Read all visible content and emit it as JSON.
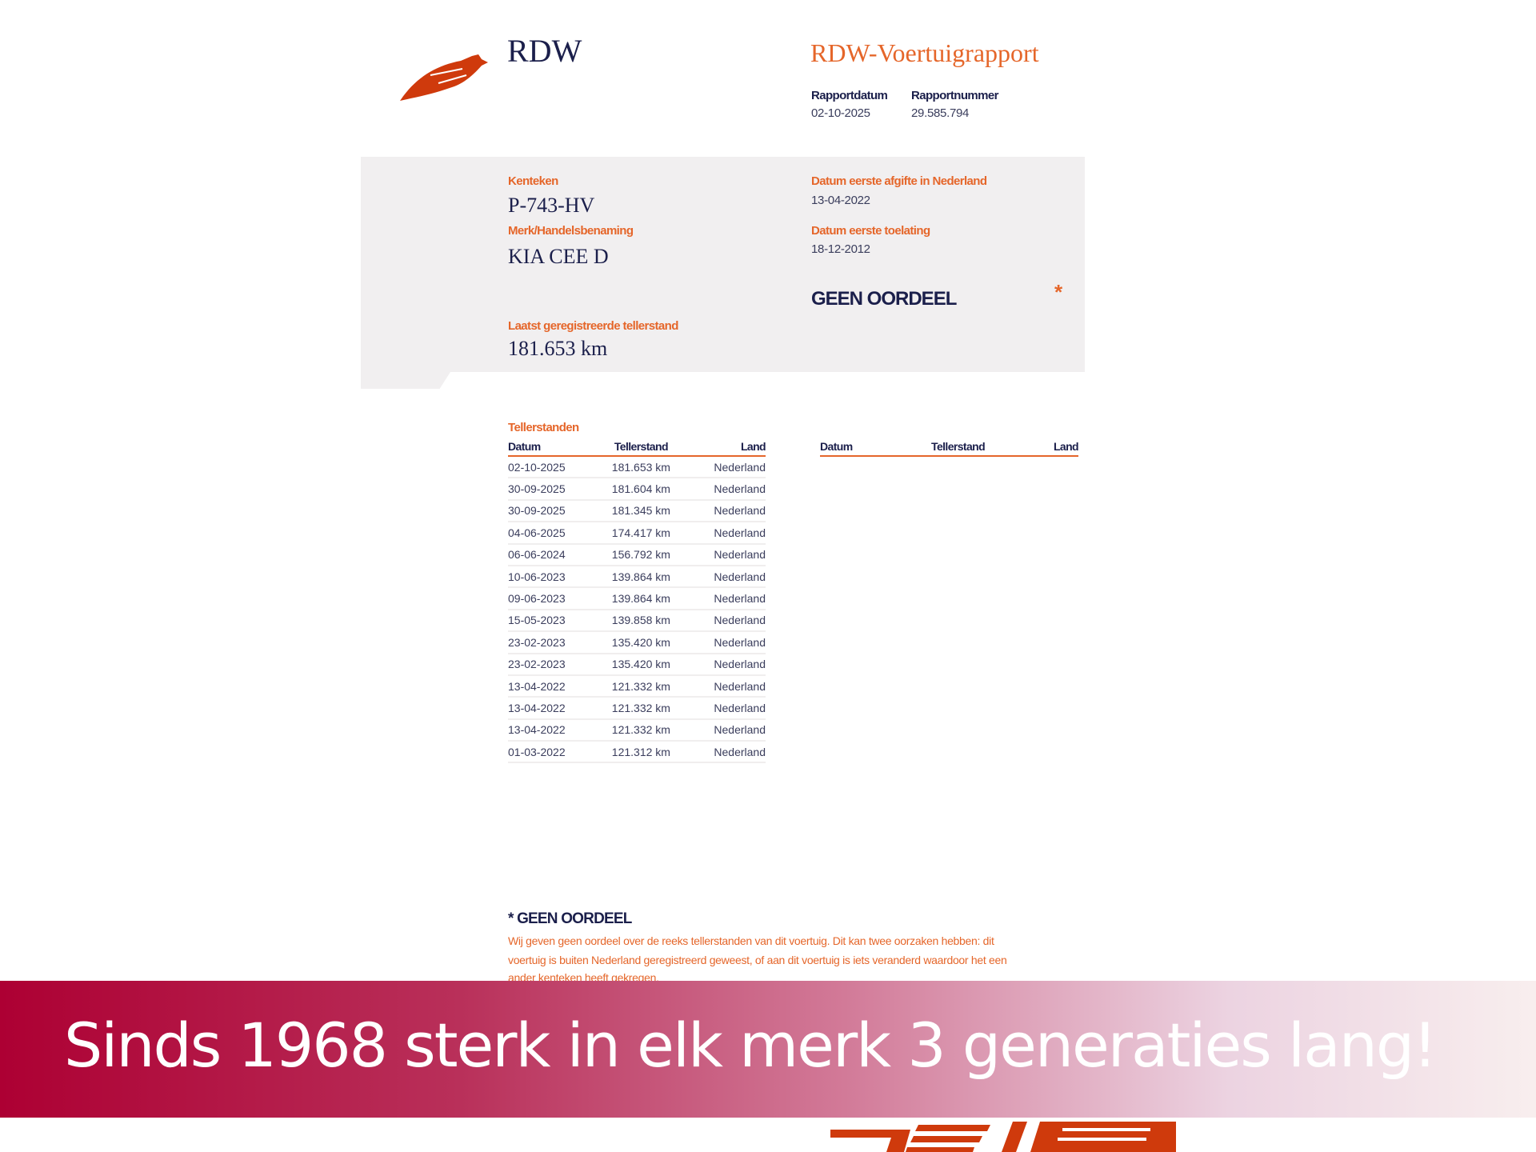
{
  "header": {
    "logo_text": "RDW",
    "title": "RDW-Voertuigrapport",
    "report_date_label": "Rapportdatum",
    "report_date": "02-10-2025",
    "report_number_label": "Rapportnummer",
    "report_number": "29.585.794"
  },
  "vehicle": {
    "plate_label": "Kenteken",
    "plate": "P-743-HV",
    "make_label": "Merk/Handelsbenaming",
    "make": "KIA CEE D",
    "odometer_label": "Laatst geregistreerde tellerstand",
    "odometer": "181.653 km",
    "first_nl_label": "Datum eerste afgifte in Nederland",
    "first_nl": "13-04-2022",
    "first_admission_label": "Datum eerste toelating",
    "first_admission": "18-12-2012",
    "verdict": "GEEN OORDEEL",
    "verdict_mark": "*"
  },
  "readings": {
    "title": "Tellerstanden",
    "columns": [
      "Datum",
      "Tellerstand",
      "Land"
    ],
    "rows": [
      [
        "02-10-2025",
        "181.653 km",
        "Nederland"
      ],
      [
        "30-09-2025",
        "181.604 km",
        "Nederland"
      ],
      [
        "30-09-2025",
        "181.345 km",
        "Nederland"
      ],
      [
        "04-06-2025",
        "174.417 km",
        "Nederland"
      ],
      [
        "06-06-2024",
        "156.792 km",
        "Nederland"
      ],
      [
        "10-06-2023",
        "139.864 km",
        "Nederland"
      ],
      [
        "09-06-2023",
        "139.864 km",
        "Nederland"
      ],
      [
        "15-05-2023",
        "139.858 km",
        "Nederland"
      ],
      [
        "23-02-2023",
        "135.420 km",
        "Nederland"
      ],
      [
        "23-02-2023",
        "135.420 km",
        "Nederland"
      ],
      [
        "13-04-2022",
        "121.332 km",
        "Nederland"
      ],
      [
        "13-04-2022",
        "121.332 km",
        "Nederland"
      ],
      [
        "13-04-2022",
        "121.332 km",
        "Nederland"
      ],
      [
        "01-03-2022",
        "121.312 km",
        "Nederland"
      ]
    ]
  },
  "footnote": {
    "title": "* GEEN OORDEEL",
    "lines": [
      "Wij geven geen oordeel over de reeks tellerstanden van dit voertuig. Dit kan twee oorzaken hebben: dit",
      "voertuig is buiten Nederland geregistreerd geweest, of aan dit voertuig is iets veranderd waardoor het een",
      "ander kenteken heeft gekregen."
    ]
  },
  "banner": {
    "text": "Sinds 1968 sterk in elk merk 3 generaties lang!"
  },
  "colors": {
    "navy": "#1b1f4b",
    "orange": "#e5662a",
    "logo_red": "#cf3a0c",
    "banner_start": "#ad0033",
    "panel": "#f1eff0"
  }
}
